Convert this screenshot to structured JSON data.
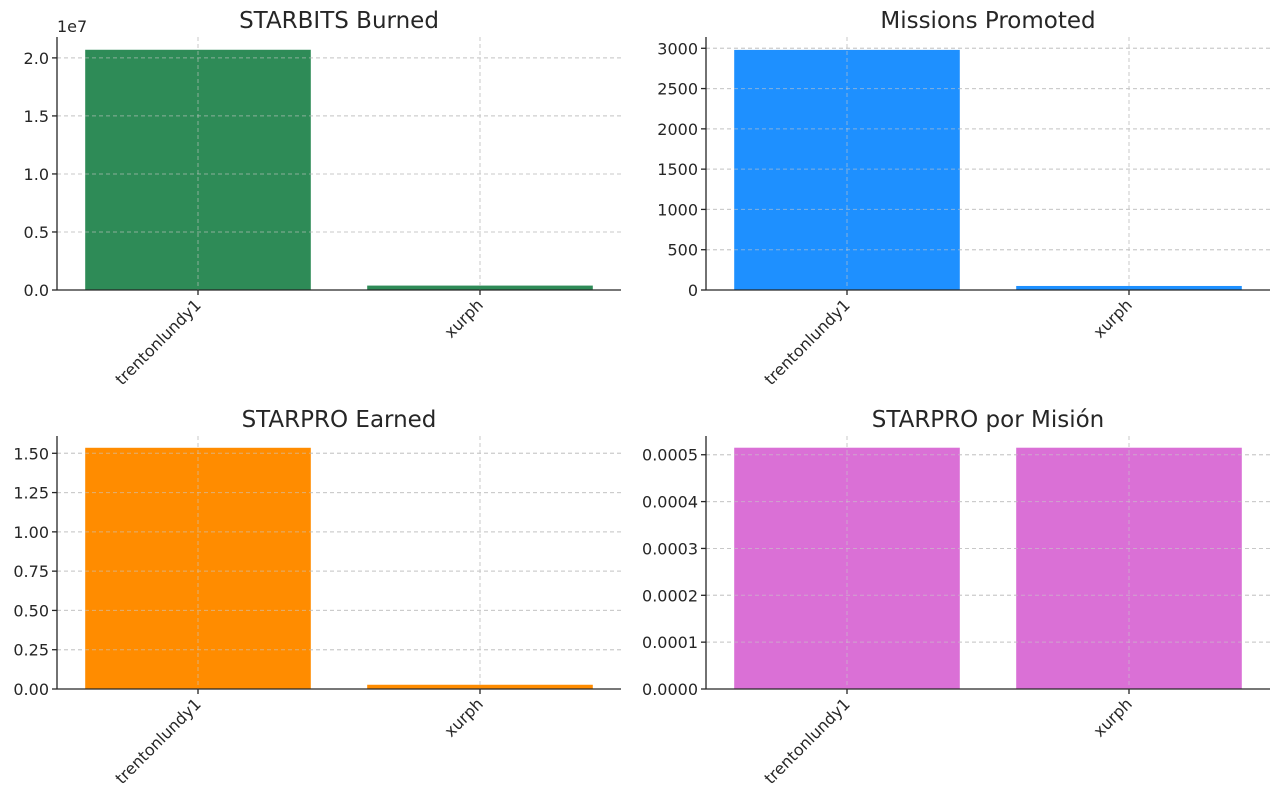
{
  "chart_data": [
    {
      "type": "bar",
      "title": "STARBITS Burned",
      "categories": [
        "trentonlundy1",
        "xurph"
      ],
      "values": [
        20700000,
        380000
      ],
      "ylim": [
        0,
        21800000
      ],
      "yticks": [
        0,
        5000000,
        10000000,
        15000000,
        20000000
      ],
      "ytick_labels": [
        "0.0",
        "0.5",
        "1.0",
        "1.5",
        "2.0"
      ],
      "offset_label": "1e7",
      "color": "#2e8b57",
      "grid": true
    },
    {
      "type": "bar",
      "title": "Missions Promoted",
      "categories": [
        "trentonlundy1",
        "xurph"
      ],
      "values": [
        2980,
        50
      ],
      "ylim": [
        0,
        3140
      ],
      "yticks": [
        0,
        500,
        1000,
        1500,
        2000,
        2500,
        3000
      ],
      "ytick_labels": [
        "0",
        "500",
        "1000",
        "1500",
        "2000",
        "2500",
        "3000"
      ],
      "offset_label": "",
      "color": "#1e90ff",
      "grid": true
    },
    {
      "type": "bar",
      "title": "STARPRO Earned",
      "categories": [
        "trentonlundy1",
        "xurph"
      ],
      "values": [
        1.535,
        0.027
      ],
      "ylim": [
        0,
        1.61
      ],
      "yticks": [
        0,
        0.25,
        0.5,
        0.75,
        1.0,
        1.25,
        1.5
      ],
      "ytick_labels": [
        "0.00",
        "0.25",
        "0.50",
        "0.75",
        "1.00",
        "1.25",
        "1.50"
      ],
      "offset_label": "",
      "color": "#ff8c00",
      "grid": true
    },
    {
      "type": "bar",
      "title": "STARPRO por Misión",
      "categories": [
        "trentonlundy1",
        "xurph"
      ],
      "values": [
        0.000515,
        0.000515
      ],
      "ylim": [
        0,
        0.00054
      ],
      "yticks": [
        0,
        0.0001,
        0.0002,
        0.0003,
        0.0004,
        0.0005
      ],
      "ytick_labels": [
        "0.0000",
        "0.0001",
        "0.0002",
        "0.0003",
        "0.0004",
        "0.0005"
      ],
      "offset_label": "",
      "color": "#da70d6",
      "grid": true
    }
  ]
}
